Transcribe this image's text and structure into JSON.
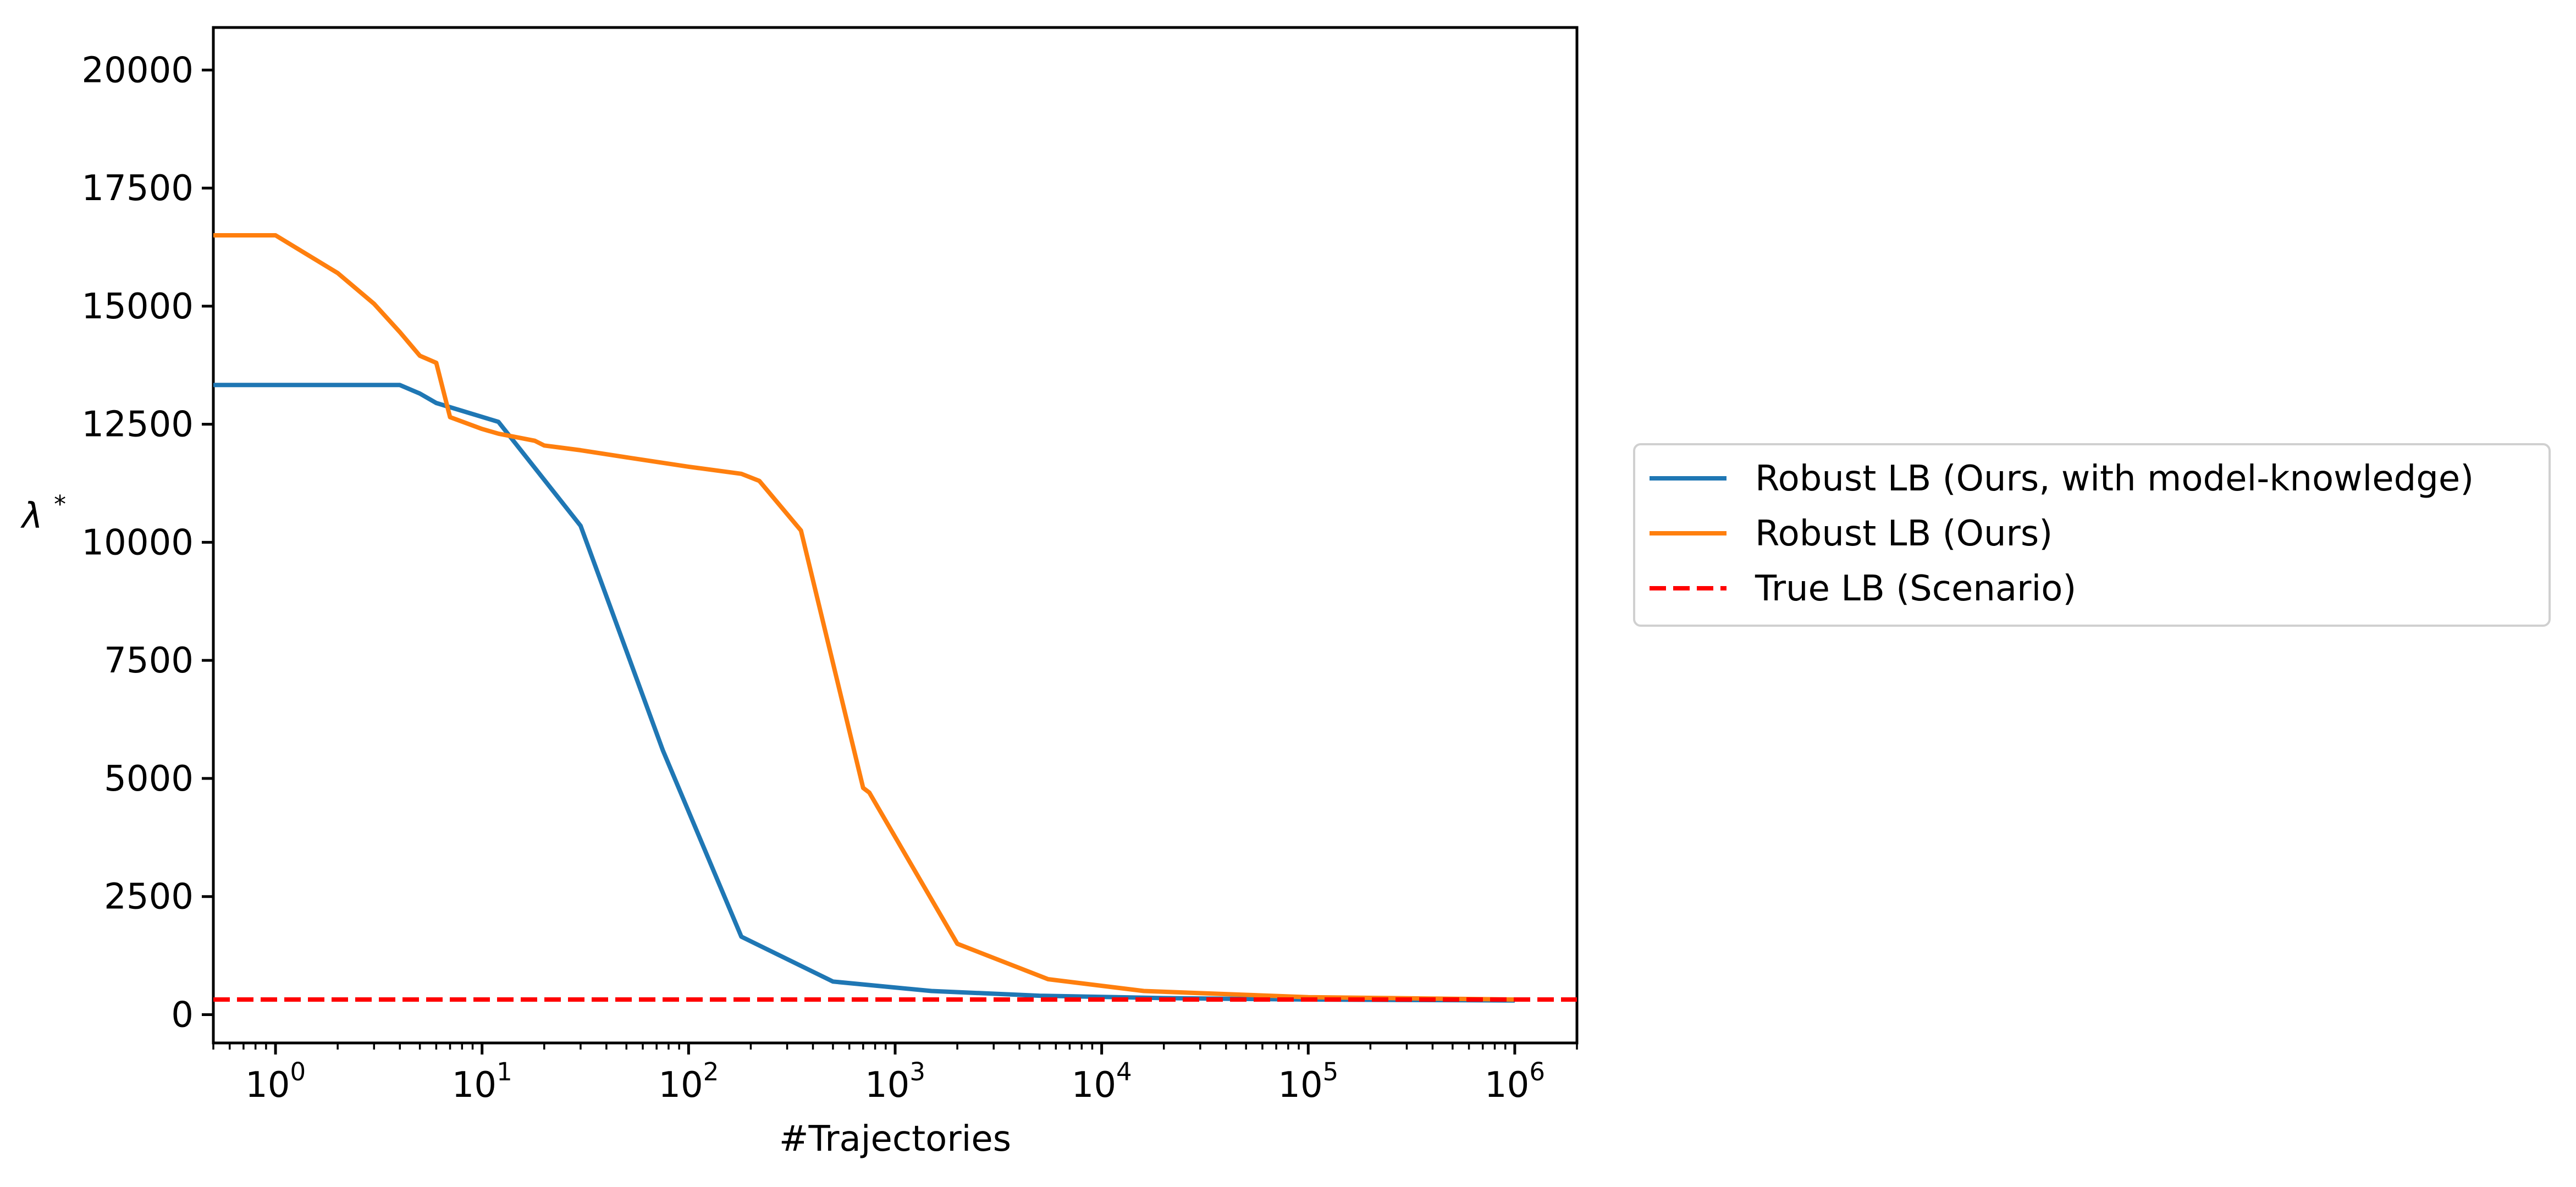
{
  "chart_data": {
    "type": "line",
    "title": "",
    "xlabel": "#Trajectories",
    "ylabel": "λ*",
    "ylabel_base": "λ",
    "ylabel_sup": "*",
    "xscale": "log",
    "xlim": [
      0.5,
      2000000
    ],
    "ylim": [
      -600,
      20900
    ],
    "grid": false,
    "legend_position": "outside-right",
    "x_ticks": [
      {
        "value": 1,
        "base": "10",
        "exp": "0"
      },
      {
        "value": 10,
        "base": "10",
        "exp": "1"
      },
      {
        "value": 100,
        "base": "10",
        "exp": "2"
      },
      {
        "value": 1000,
        "base": "10",
        "exp": "3"
      },
      {
        "value": 10000,
        "base": "10",
        "exp": "4"
      },
      {
        "value": 100000,
        "base": "10",
        "exp": "5"
      },
      {
        "value": 1000000,
        "base": "10",
        "exp": "6"
      }
    ],
    "y_ticks": [
      {
        "value": 0,
        "label": "0"
      },
      {
        "value": 2500,
        "label": "2500"
      },
      {
        "value": 5000,
        "label": "5000"
      },
      {
        "value": 7500,
        "label": "7500"
      },
      {
        "value": 10000,
        "label": "10000"
      },
      {
        "value": 12500,
        "label": "12500"
      },
      {
        "value": 15000,
        "label": "15000"
      },
      {
        "value": 17500,
        "label": "17500"
      },
      {
        "value": 20000,
        "label": "20000"
      }
    ],
    "series": [
      {
        "name": "Robust LB (Ours, with model-knowledge)",
        "color": "#1f77b4",
        "style": "solid",
        "x": [
          0.5,
          1,
          2,
          4,
          5,
          6,
          12,
          30,
          75,
          180,
          500,
          1500,
          5000,
          20000,
          100000,
          1000000
        ],
        "y": [
          13330,
          13330,
          13330,
          13330,
          13150,
          12950,
          12550,
          10350,
          5600,
          1650,
          700,
          500,
          400,
          350,
          320,
          300
        ]
      },
      {
        "name": "Robust LB (Ours)",
        "color": "#ff7f0e",
        "style": "solid",
        "x": [
          0.5,
          1,
          2,
          3,
          4,
          5,
          6,
          7,
          10,
          12,
          18,
          20,
          30,
          50,
          100,
          180,
          220,
          350,
          700,
          750,
          2000,
          5500,
          16000,
          100000,
          1000000
        ],
        "y": [
          16500,
          16500,
          15700,
          15050,
          14450,
          13950,
          13800,
          12650,
          12400,
          12300,
          12150,
          12050,
          11950,
          11800,
          11600,
          11450,
          11300,
          10250,
          4800,
          4700,
          1500,
          750,
          500,
          370,
          320
        ]
      },
      {
        "name": "True LB (Scenario)",
        "color": "#ff0000",
        "style": "dashed",
        "x": [
          0.5,
          2000000
        ],
        "y": [
          320,
          320
        ]
      }
    ]
  }
}
